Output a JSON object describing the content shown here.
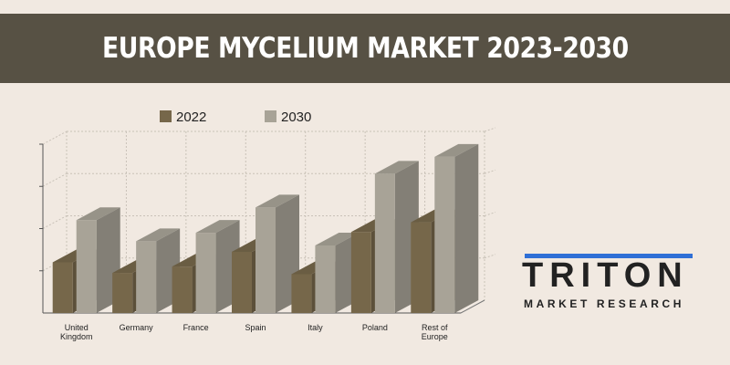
{
  "header": {
    "title": "EUROPE MYCELIUM MARKET 2023-2030"
  },
  "legend": [
    {
      "label": "2022",
      "color": "#76674a"
    },
    {
      "label": "2030",
      "color": "#a8a397"
    }
  ],
  "logo": {
    "word": "TRITON",
    "sub": "MARKET RESEARCH",
    "accent": "#2f6fd6"
  },
  "chart_data": {
    "type": "bar",
    "title": "EUROPE MYCELIUM MARKET 2023-2030",
    "categories": [
      [
        "United",
        "Kingdom"
      ],
      [
        "Germany"
      ],
      [
        "France"
      ],
      [
        "Spain"
      ],
      [
        "Italy"
      ],
      [
        "Poland"
      ],
      [
        "Rest of",
        "Europe"
      ]
    ],
    "series": [
      {
        "name": "2022",
        "values": [
          1.2,
          0.95,
          1.1,
          1.45,
          0.92,
          1.92,
          2.15
        ],
        "color": "#76674a"
      },
      {
        "name": "2030",
        "values": [
          2.2,
          1.7,
          1.9,
          2.5,
          1.6,
          3.3,
          3.7
        ],
        "color": "#a8a397"
      }
    ],
    "ylim": [
      0,
      4
    ],
    "y_ticks_labeled": false,
    "grid": true,
    "legend_position": "top"
  }
}
